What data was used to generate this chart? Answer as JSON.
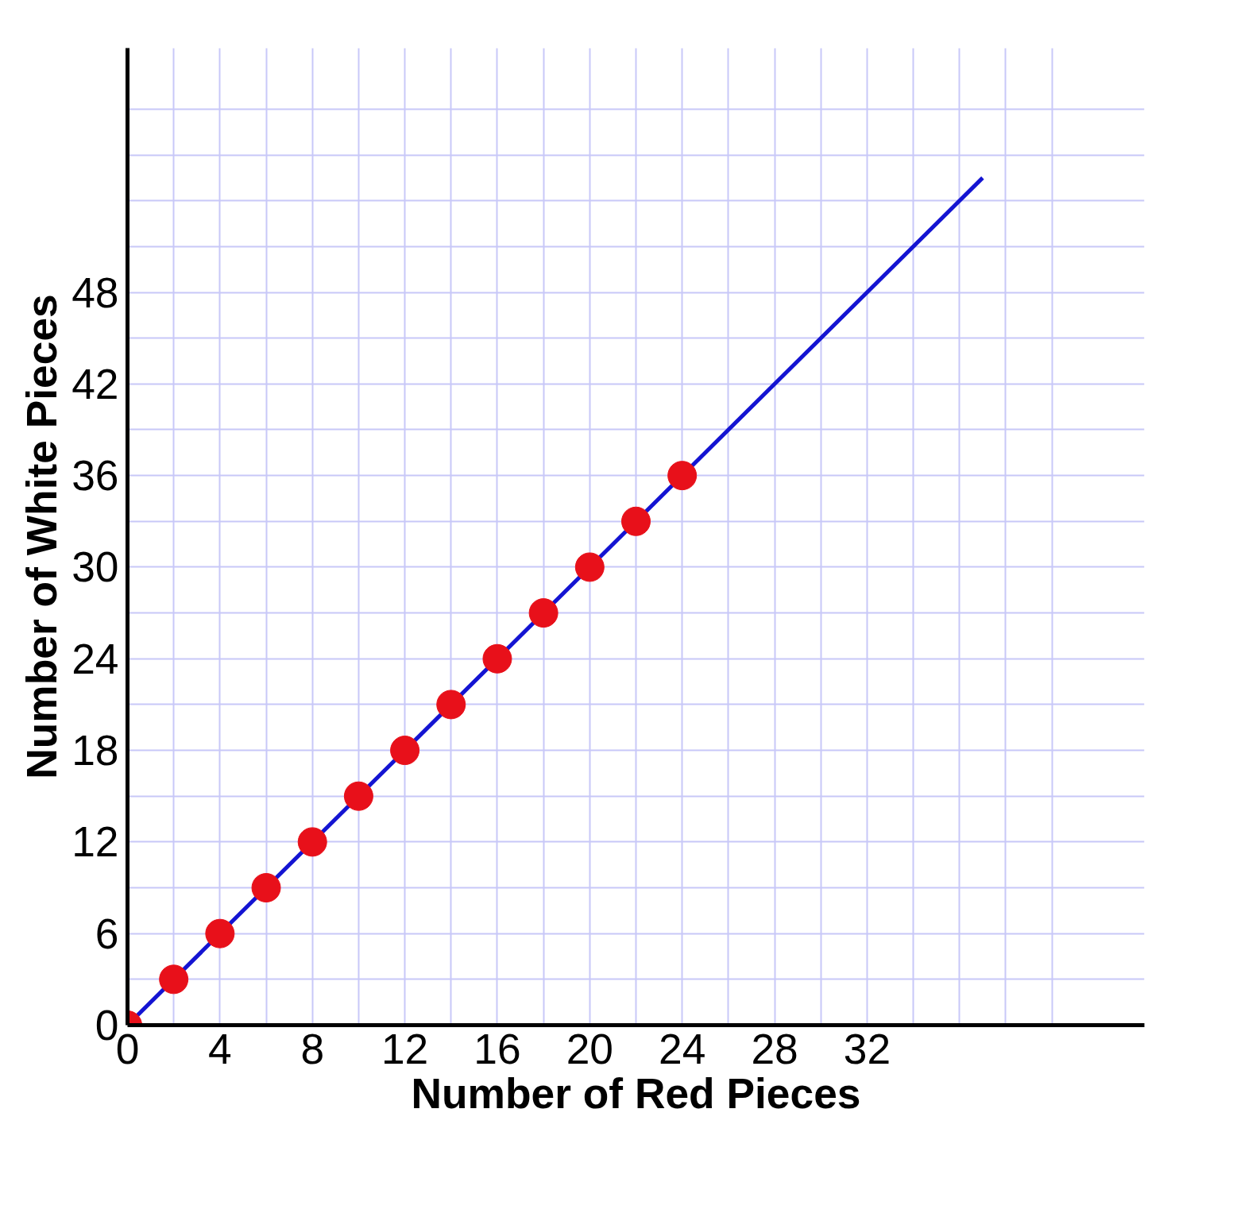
{
  "chart_data": {
    "type": "scatter",
    "xlabel": "Number of Red Pieces",
    "ylabel": "Number of White Pieces",
    "x": [
      0,
      2,
      4,
      6,
      8,
      10,
      12,
      14,
      16,
      18,
      20,
      22,
      24
    ],
    "series": [
      {
        "color": "#e8101a",
        "values": [
          0,
          3,
          6,
          9,
          12,
          15,
          18,
          21,
          24,
          27,
          30,
          33,
          36
        ],
        "marker": "circle"
      },
      {
        "type": "line",
        "color": "#1414d2",
        "x": [
          0,
          37
        ],
        "values": [
          0,
          55.5
        ],
        "line_style": "solid"
      }
    ],
    "xlim": [
      0,
      44
    ],
    "ylim": [
      0,
      64
    ],
    "xticks": [
      0,
      {
        "value": 2,
        "label": null
      },
      4,
      {
        "value": 6,
        "label": null
      },
      8,
      {
        "value": 10,
        "label": null
      },
      12,
      {
        "value": 14,
        "label": null
      },
      16,
      {
        "value": 18,
        "label": null
      },
      20,
      {
        "value": 22,
        "label": null
      },
      24,
      {
        "value": 26,
        "label": null
      },
      28,
      {
        "value": 30,
        "label": null
      },
      32,
      {
        "value": 34,
        "label": null
      },
      {
        "value": 36,
        "label": null
      },
      {
        "value": 38,
        "label": null
      },
      {
        "value": 40,
        "label": null
      }
    ],
    "yticks": [
      0,
      {
        "value": 3,
        "label": null
      },
      6,
      {
        "value": 9,
        "label": null
      },
      12,
      {
        "value": 15,
        "label": null
      },
      18,
      {
        "value": 21,
        "label": null
      },
      24,
      {
        "value": 27,
        "label": null
      },
      30,
      {
        "value": 33,
        "label": null
      },
      36,
      {
        "value": 39,
        "label": null
      },
      42,
      {
        "value": 45,
        "label": null
      },
      48,
      {
        "value": 51,
        "label": null
      },
      {
        "value": 54,
        "label": null
      },
      {
        "value": 57,
        "label": null
      },
      {
        "value": 60,
        "label": null
      }
    ],
    "grid": true
  }
}
